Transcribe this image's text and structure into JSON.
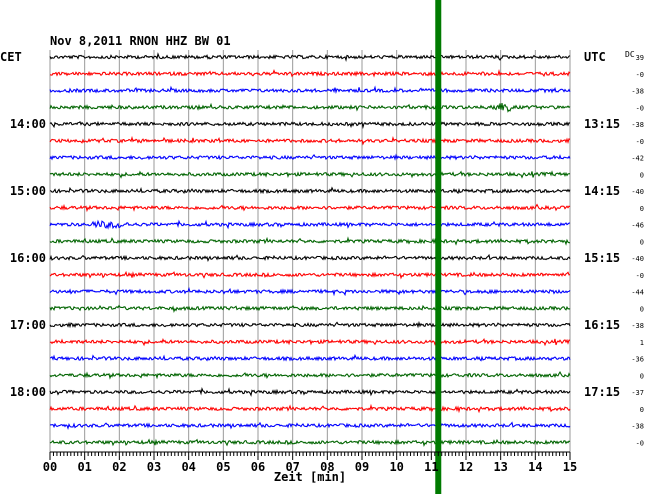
{
  "chart_data": {
    "type": "line",
    "title": "Nov 8,2011   RNON HHZ BW 01",
    "left_timezone": "CET",
    "right_timezone": "UTC",
    "dc_label": "DC",
    "xlabel": "Zeit [min]",
    "xlim": [
      0,
      15
    ],
    "x_ticks": [
      "00",
      "01",
      "02",
      "03",
      "04",
      "05",
      "06",
      "07",
      "08",
      "09",
      "10",
      "11",
      "12",
      "13",
      "14",
      "15"
    ],
    "trace_count": 24,
    "trace_colors": [
      "#000000",
      "#ff0000",
      "#0000ff",
      "#006400"
    ],
    "left_hour_labels": [
      {
        "trace": 4,
        "text": "14:00"
      },
      {
        "trace": 8,
        "text": "15:00"
      },
      {
        "trace": 12,
        "text": "16:00"
      },
      {
        "trace": 16,
        "text": "17:00"
      },
      {
        "trace": 20,
        "text": "18:00"
      }
    ],
    "right_hour_labels": [
      {
        "trace": 0,
        "text": "UTC"
      },
      {
        "trace": 4,
        "text": "13:15"
      },
      {
        "trace": 8,
        "text": "14:15"
      },
      {
        "trace": 12,
        "text": "15:15"
      },
      {
        "trace": 16,
        "text": "16:15"
      },
      {
        "trace": 20,
        "text": "17:15"
      }
    ],
    "dc_offsets": [
      "39",
      "-0",
      "-38",
      "-0",
      "-38",
      "-0",
      "-42",
      "0",
      "-40",
      "0",
      "-46",
      "0",
      "-40",
      "-0",
      "-44",
      "0",
      "-38",
      "1",
      "-36",
      "0",
      "-37",
      "0",
      "-38",
      "-0"
    ],
    "event_marker": {
      "x_min": 11.2,
      "color": "#007a00"
    },
    "grid": true
  }
}
